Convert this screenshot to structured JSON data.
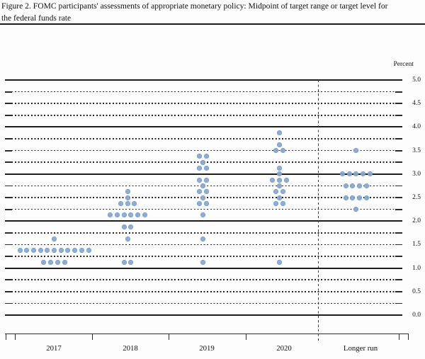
{
  "figure": {
    "title_line1": "Figure 2. FOMC participants' assessments of appropriate monetary policy: Midpoint of target range or target level for",
    "title_line2": "the federal funds rate"
  },
  "chart_data": {
    "type": "scatter",
    "subtype": "fomc-dot-plot",
    "title": "FOMC participants' assessments of appropriate monetary policy: Midpoint of target range or target level for the federal funds rate",
    "ylabel": "Percent",
    "ylim": [
      0.0,
      5.0
    ],
    "y_grid_step": 0.25,
    "y_solid_line_step": 1.0,
    "y_tick_labels": [
      "5.0",
      "4.5",
      "4.0",
      "3.5",
      "3.0",
      "2.5",
      "2.0",
      "1.5",
      "1.0",
      "0.5",
      "0.0"
    ],
    "grid": true,
    "legend_position": "none",
    "categories": [
      "2017",
      "2018",
      "2019",
      "2020",
      "Longer run"
    ],
    "separator_before_category": "Longer run",
    "dot_color": "#84a7d4",
    "series": [
      {
        "category": "2017",
        "dots": [
          {
            "rate": 1.625,
            "count": 1
          },
          {
            "rate": 1.375,
            "count": 11
          },
          {
            "rate": 1.125,
            "count": 4
          }
        ]
      },
      {
        "category": "2018",
        "dots": [
          {
            "rate": 2.625,
            "count": 1
          },
          {
            "rate": 2.5,
            "count": 1
          },
          {
            "rate": 2.375,
            "count": 3
          },
          {
            "rate": 2.125,
            "count": 6
          },
          {
            "rate": 1.875,
            "count": 2
          },
          {
            "rate": 1.625,
            "count": 1
          },
          {
            "rate": 1.125,
            "count": 2
          }
        ]
      },
      {
        "category": "2019",
        "dots": [
          {
            "rate": 3.375,
            "count": 2
          },
          {
            "rate": 3.25,
            "count": 1
          },
          {
            "rate": 3.125,
            "count": 2
          },
          {
            "rate": 2.875,
            "count": 2
          },
          {
            "rate": 2.75,
            "count": 1
          },
          {
            "rate": 2.625,
            "count": 2
          },
          {
            "rate": 2.5,
            "count": 1
          },
          {
            "rate": 2.375,
            "count": 2
          },
          {
            "rate": 2.125,
            "count": 1
          },
          {
            "rate": 1.625,
            "count": 1
          },
          {
            "rate": 1.125,
            "count": 1
          }
        ]
      },
      {
        "category": "2020",
        "dots": [
          {
            "rate": 3.875,
            "count": 1
          },
          {
            "rate": 3.625,
            "count": 1
          },
          {
            "rate": 3.5,
            "count": 2
          },
          {
            "rate": 3.125,
            "count": 1
          },
          {
            "rate": 3.0,
            "count": 1
          },
          {
            "rate": 2.875,
            "count": 3
          },
          {
            "rate": 2.75,
            "count": 1
          },
          {
            "rate": 2.625,
            "count": 2
          },
          {
            "rate": 2.5,
            "count": 1
          },
          {
            "rate": 2.375,
            "count": 2
          },
          {
            "rate": 1.125,
            "count": 1
          }
        ]
      },
      {
        "category": "Longer run",
        "dots": [
          {
            "rate": 3.5,
            "count": 1
          },
          {
            "rate": 3.0,
            "count": 5
          },
          {
            "rate": 2.75,
            "count": 4
          },
          {
            "rate": 2.5,
            "count": 4
          },
          {
            "rate": 2.25,
            "count": 1
          }
        ]
      }
    ]
  }
}
